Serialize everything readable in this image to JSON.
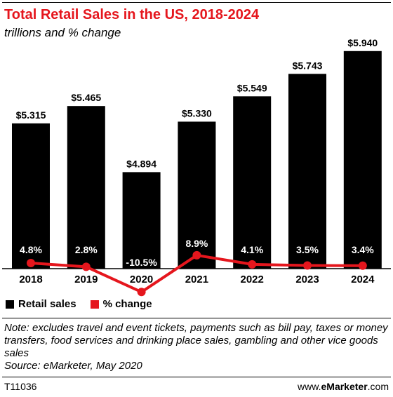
{
  "header": {
    "title": "Total Retail Sales in the US, 2018-2024",
    "subtitle": "trillions and % change"
  },
  "chart_data": {
    "type": "bar",
    "categories": [
      "2018",
      "2019",
      "2020",
      "2021",
      "2022",
      "2023",
      "2024"
    ],
    "series": [
      {
        "name": "Retail sales",
        "type": "bar",
        "values": [
          5.315,
          5.465,
          4.894,
          5.33,
          5.549,
          5.743,
          5.94
        ],
        "labels": [
          "$5.315",
          "$5.465",
          "$4.894",
          "$5.330",
          "$5.549",
          "$5.743",
          "$5.940"
        ],
        "color": "#000000"
      },
      {
        "name": "% change",
        "type": "line",
        "values": [
          4.8,
          2.8,
          -10.5,
          8.9,
          4.1,
          3.5,
          3.4
        ],
        "labels": [
          "4.8%",
          "2.8%",
          "-10.5%",
          "8.9%",
          "4.1%",
          "3.5%",
          "3.4%"
        ],
        "color": "#e5161d"
      }
    ],
    "legend_position": "bottom-left",
    "grid": false
  },
  "legend": {
    "bar_label": "Retail sales",
    "line_label": "% change"
  },
  "note": {
    "text": "Note: excludes travel and event tickets, payments such as bill pay, taxes or money transfers, food services and drinking place sales, gambling and other vice goods sales",
    "source": "Source: eMarketer, May 2020"
  },
  "footer": {
    "id": "T11036",
    "brand_prefix": "www.",
    "brand_name": "eMarketer",
    "brand_suffix": ".com"
  }
}
